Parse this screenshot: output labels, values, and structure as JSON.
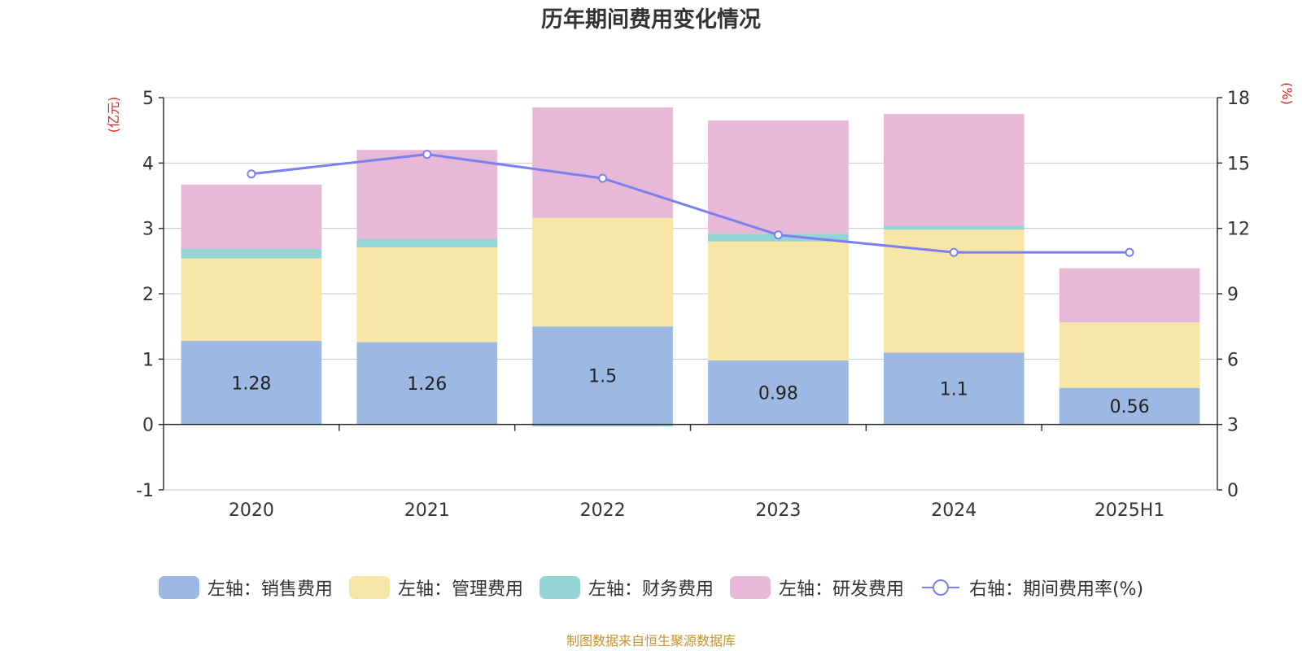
{
  "chart_data": {
    "type": "bar",
    "title": "历年期间费用变化情况",
    "categories": [
      "2020",
      "2021",
      "2022",
      "2023",
      "2024",
      "2025H1"
    ],
    "left_axis": {
      "label": "(亿元)",
      "min": -1,
      "max": 5,
      "ticks": [
        "-1",
        "0",
        "1",
        "2",
        "3",
        "4",
        "5"
      ]
    },
    "right_axis": {
      "label": "(%)",
      "min": 0,
      "max": 18,
      "ticks": [
        "0",
        "3",
        "6",
        "9",
        "12",
        "15",
        "18"
      ]
    },
    "series": [
      {
        "name": "左轴：销售费用",
        "axis": "left",
        "kind": "bar",
        "color": "#9db8e2",
        "values": [
          1.28,
          1.26,
          1.5,
          0.98,
          1.1,
          0.56
        ],
        "labels": [
          "1.28",
          "1.26",
          "1.5",
          "0.98",
          "1.1",
          "0.56"
        ]
      },
      {
        "name": "左轴：管理费用",
        "axis": "left",
        "kind": "bar",
        "color": "#f8e6a6",
        "values": [
          1.26,
          1.45,
          1.66,
          1.82,
          1.88,
          1.0
        ]
      },
      {
        "name": "左轴：财务费用",
        "axis": "left",
        "kind": "bar",
        "color": "#96d4d4",
        "values": [
          0.15,
          0.13,
          -0.03,
          0.12,
          0.06,
          -0.01
        ]
      },
      {
        "name": "左轴：研发费用",
        "axis": "left",
        "kind": "bar",
        "color": "#e8b8d9",
        "values": [
          0.98,
          1.36,
          1.69,
          1.73,
          1.71,
          0.83
        ]
      },
      {
        "name": "右轴：期间费用率(%)",
        "axis": "right",
        "kind": "line",
        "color": "#7b7ff0",
        "values": [
          14.5,
          15.4,
          14.3,
          11.7,
          10.9,
          10.9
        ]
      }
    ],
    "grid": true,
    "legend_position": "bottom"
  },
  "footer": {
    "source": "制图数据来自恒生聚源数据库"
  }
}
